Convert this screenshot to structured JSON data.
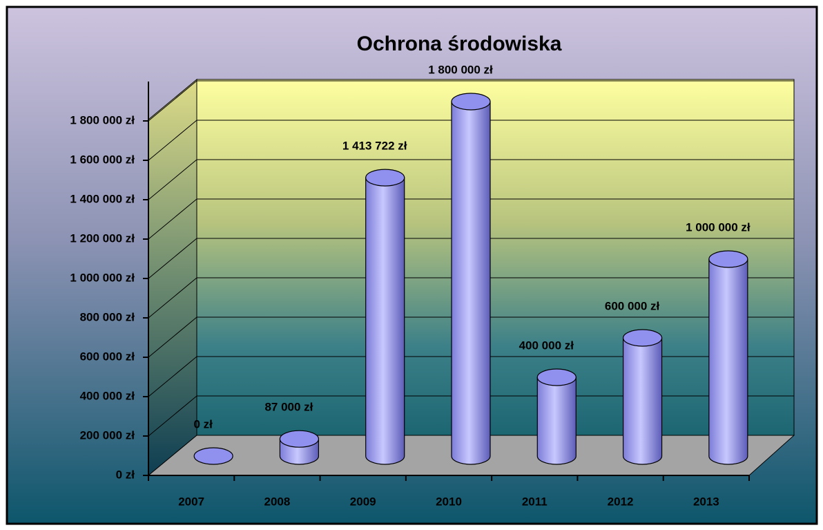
{
  "chart_data": {
    "type": "bar",
    "title": "Ochrona środowiska",
    "categories": [
      "2007",
      "2008",
      "2009",
      "2010",
      "2011",
      "2012",
      "2013"
    ],
    "values": [
      0,
      87000,
      1413722,
      1800000,
      400000,
      600000,
      1000000
    ],
    "value_labels": [
      "0 zł",
      "87 000 zł",
      "1 413 722 zł",
      "1 800 000 zł",
      "400 000 zł",
      "600 000 zł",
      "1 000 000 zł"
    ],
    "color": "#9090ee",
    "ylim": [
      0,
      2000000
    ],
    "yticks": [
      {
        "value": 0,
        "label": "0 zł"
      },
      {
        "value": 200000,
        "label": "200 000 zł"
      },
      {
        "value": 400000,
        "label": "400 000 zł"
      },
      {
        "value": 600000,
        "label": "600 000 zł"
      },
      {
        "value": 800000,
        "label": "800 000 zł"
      },
      {
        "value": 1000000,
        "label": "1 000 000 zł"
      },
      {
        "value": 1200000,
        "label": "1 200 000 zł"
      },
      {
        "value": 1400000,
        "label": "1 400 000 zł"
      },
      {
        "value": 1600000,
        "label": "1 600 000 zł"
      },
      {
        "value": 1800000,
        "label": "1 800 000 zł"
      }
    ],
    "grid": true
  }
}
